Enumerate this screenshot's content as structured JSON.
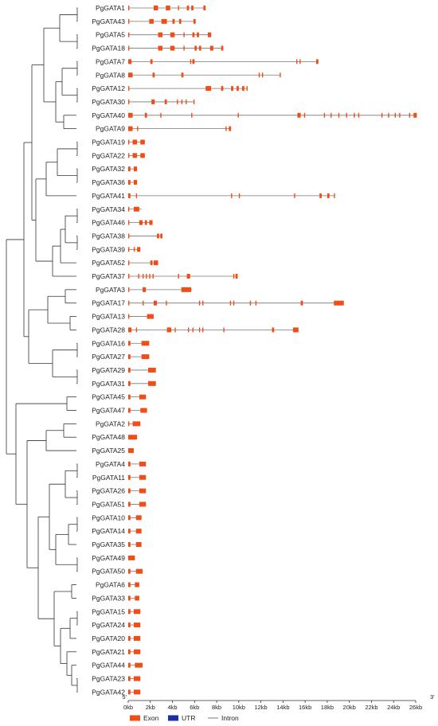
{
  "colors": {
    "exon": "#f04e16",
    "utr": "#1a2fa8",
    "intron": "#777777",
    "tree": "#333333"
  },
  "chart_data": {
    "type": "gene-structure",
    "axis": {
      "min_kb": 0,
      "max_kb": 26,
      "ticks_kb": [
        0,
        2,
        4,
        6,
        8,
        10,
        12,
        14,
        16,
        18,
        20,
        22,
        24,
        26
      ],
      "tick_labels": [
        "0kb",
        "2kb",
        "4kb",
        "6kb",
        "8kb",
        "10kb",
        "12kb",
        "14kb",
        "16kb",
        "18kb",
        "20kb",
        "22kb",
        "24kb",
        "26kb"
      ],
      "start_label": "5'",
      "end_label": "3'"
    },
    "legend": [
      {
        "label": "Exon",
        "type": "exon"
      },
      {
        "label": "UTR",
        "type": "utr"
      },
      {
        "label": "Intron",
        "type": "intron"
      }
    ],
    "genes": [
      {
        "name": "PgGATA1",
        "length": 7.0,
        "exons": [
          [
            0,
            0.1
          ],
          [
            2.3,
            2.7
          ],
          [
            3.4,
            3.8
          ],
          [
            4.5,
            4.6
          ],
          [
            5.3,
            5.5
          ],
          [
            5.7,
            5.9
          ],
          [
            6.8,
            7.0
          ]
        ]
      },
      {
        "name": "PgGATA43",
        "length": 6.1,
        "exons": [
          [
            0,
            0.1
          ],
          [
            1.9,
            2.3
          ],
          [
            3.0,
            3.5
          ],
          [
            4.0,
            4.2
          ],
          [
            4.6,
            4.8
          ],
          [
            5.9,
            6.1
          ]
        ]
      },
      {
        "name": "PgGATA5",
        "length": 7.5,
        "exons": [
          [
            0,
            0.1
          ],
          [
            2.7,
            3.1
          ],
          [
            3.8,
            4.2
          ],
          [
            5.0,
            5.1
          ],
          [
            5.8,
            6.0
          ],
          [
            6.2,
            6.4
          ],
          [
            7.2,
            7.5
          ]
        ]
      },
      {
        "name": "PgGATA18",
        "length": 8.6,
        "exons": [
          [
            0,
            0.1
          ],
          [
            2.7,
            3.1
          ],
          [
            3.8,
            4.2
          ],
          [
            5.0,
            5.1
          ],
          [
            6.0,
            6.2
          ],
          [
            6.4,
            6.6
          ],
          [
            7.4,
            7.7
          ],
          [
            8.4,
            8.6
          ]
        ]
      },
      {
        "name": "PgGATA7",
        "length": 17.2,
        "exons": [
          [
            0,
            0.3
          ],
          [
            2.0,
            2.2
          ],
          [
            5.6,
            5.7
          ],
          [
            5.8,
            6.0
          ],
          [
            15.2,
            15.3
          ],
          [
            15.5,
            15.6
          ],
          [
            17.0,
            17.2
          ]
        ]
      },
      {
        "name": "PgGATA8",
        "length": 13.8,
        "exons": [
          [
            0,
            0.4
          ],
          [
            2.2,
            2.4
          ],
          [
            4.8,
            5.0
          ],
          [
            11.8,
            11.9
          ],
          [
            12.1,
            12.2
          ],
          [
            13.7,
            13.8
          ]
        ]
      },
      {
        "name": "PgGATA12",
        "length": 10.8,
        "exons": [
          [
            0,
            0.1
          ],
          [
            7.0,
            7.5
          ],
          [
            8.4,
            8.6
          ],
          [
            9.3,
            9.5
          ],
          [
            9.8,
            10.0
          ],
          [
            10.3,
            10.5
          ],
          [
            10.7,
            10.8
          ]
        ]
      },
      {
        "name": "PgGATA30",
        "length": 6.0,
        "exons": [
          [
            0,
            0.1
          ],
          [
            2.1,
            2.4
          ],
          [
            3.3,
            3.5
          ],
          [
            4.4,
            4.5
          ],
          [
            4.8,
            4.9
          ],
          [
            5.2,
            5.3
          ],
          [
            5.9,
            6.0
          ]
        ]
      },
      {
        "name": "PgGATA40",
        "length": 26.1,
        "exons": [
          [
            0,
            0.4
          ],
          [
            1.5,
            1.7
          ],
          [
            2.9,
            3.0
          ],
          [
            5.7,
            5.8
          ],
          [
            9.9,
            10.0
          ],
          [
            15.3,
            15.6
          ],
          [
            15.9,
            16.0
          ],
          [
            17.7,
            17.8
          ],
          [
            18.3,
            18.4
          ],
          [
            19.0,
            19.1
          ],
          [
            19.7,
            19.8
          ],
          [
            20.4,
            20.5
          ],
          [
            20.8,
            20.9
          ],
          [
            22.9,
            23.0
          ],
          [
            23.5,
            23.6
          ],
          [
            24.1,
            24.2
          ],
          [
            24.5,
            24.6
          ],
          [
            25.4,
            25.5
          ],
          [
            25.8,
            26.1
          ]
        ]
      },
      {
        "name": "PgGATA9",
        "length": 9.3,
        "exons": [
          [
            0,
            0.4
          ],
          [
            0.8,
            0.9
          ],
          [
            8.8,
            8.9
          ],
          [
            9.1,
            9.3
          ]
        ]
      },
      {
        "name": "PgGATA19",
        "length": 1.5,
        "exons": [
          [
            0,
            0.1
          ],
          [
            0.4,
            0.8
          ],
          [
            1.1,
            1.5
          ]
        ]
      },
      {
        "name": "PgGATA22",
        "length": 1.5,
        "exons": [
          [
            0,
            0.1
          ],
          [
            0.4,
            0.8
          ],
          [
            1.1,
            1.5
          ]
        ]
      },
      {
        "name": "PgGATA32",
        "length": 0.8,
        "exons": [
          [
            0,
            0.2
          ],
          [
            0.5,
            0.8
          ]
        ]
      },
      {
        "name": "PgGATA36",
        "length": 0.8,
        "exons": [
          [
            0,
            0.2
          ],
          [
            0.5,
            0.8
          ]
        ]
      },
      {
        "name": "PgGATA41",
        "length": 18.7,
        "exons": [
          [
            0,
            0.2
          ],
          [
            0.7,
            0.8
          ],
          [
            9.3,
            9.4
          ],
          [
            10.0,
            10.1
          ],
          [
            15.0,
            15.1
          ],
          [
            17.3,
            17.5
          ],
          [
            18.0,
            18.2
          ],
          [
            18.6,
            18.7
          ]
        ]
      },
      {
        "name": "PgGATA34",
        "length": 1.2,
        "exons": [
          [
            0,
            0.1
          ],
          [
            0.5,
            1.0
          ]
        ]
      },
      {
        "name": "PgGATA46",
        "length": 2.2,
        "exons": [
          [
            0,
            0.1
          ],
          [
            1.0,
            1.3
          ],
          [
            1.5,
            1.7
          ],
          [
            1.9,
            2.2
          ]
        ]
      },
      {
        "name": "PgGATA38",
        "length": 3.1,
        "exons": [
          [
            0,
            0.1
          ],
          [
            2.6,
            2.8
          ],
          [
            2.9,
            3.1
          ]
        ]
      },
      {
        "name": "PgGATA39",
        "length": 1.1,
        "exons": [
          [
            0,
            0.1
          ],
          [
            0.5,
            0.6
          ],
          [
            0.8,
            1.1
          ]
        ]
      },
      {
        "name": "PgGATA52",
        "length": 2.7,
        "exons": [
          [
            0,
            0.1
          ],
          [
            2.0,
            2.2
          ],
          [
            2.3,
            2.7
          ]
        ]
      },
      {
        "name": "PgGATA37",
        "length": 9.9,
        "exons": [
          [
            0,
            0.1
          ],
          [
            0.9,
            1.0
          ],
          [
            1.3,
            1.4
          ],
          [
            1.6,
            1.7
          ],
          [
            1.9,
            2.0
          ],
          [
            2.2,
            2.3
          ],
          [
            4.5,
            4.6
          ],
          [
            5.3,
            5.6
          ],
          [
            9.5,
            9.6
          ],
          [
            9.7,
            9.9
          ]
        ]
      },
      {
        "name": "PgGATA3",
        "length": 5.8,
        "exons": [
          [
            0,
            0.1
          ],
          [
            1.3,
            1.6
          ],
          [
            4.8,
            5.7
          ]
        ]
      },
      {
        "name": "PgGATA17",
        "length": 19.5,
        "exons": [
          [
            0,
            0.1
          ],
          [
            1.3,
            1.4
          ],
          [
            2.3,
            2.6
          ],
          [
            3.4,
            3.5
          ],
          [
            6.4,
            6.5
          ],
          [
            6.7,
            6.8
          ],
          [
            9.2,
            9.3
          ],
          [
            9.5,
            9.6
          ],
          [
            11.0,
            11.1
          ],
          [
            11.5,
            11.6
          ],
          [
            15.6,
            15.8
          ],
          [
            18.6,
            19.5
          ]
        ]
      },
      {
        "name": "PgGATA13",
        "length": 2.3,
        "exons": [
          [
            0,
            0.1
          ],
          [
            1.7,
            2.3
          ]
        ]
      },
      {
        "name": "PgGATA28",
        "length": 15.4,
        "exons": [
          [
            0,
            0.3
          ],
          [
            0.7,
            0.8
          ],
          [
            3.5,
            3.9
          ],
          [
            4.2,
            4.3
          ],
          [
            5.4,
            5.5
          ],
          [
            5.8,
            5.9
          ],
          [
            6.4,
            6.5
          ],
          [
            6.7,
            6.8
          ],
          [
            8.6,
            8.7
          ],
          [
            13.0,
            13.2
          ],
          [
            14.9,
            15.4
          ]
        ]
      },
      {
        "name": "PgGATA16",
        "length": 1.9,
        "exons": [
          [
            0,
            0.2
          ],
          [
            1.2,
            1.9
          ]
        ]
      },
      {
        "name": "PgGATA27",
        "length": 1.9,
        "exons": [
          [
            0,
            0.2
          ],
          [
            1.2,
            1.9
          ]
        ]
      },
      {
        "name": "PgGATA29",
        "length": 2.5,
        "exons": [
          [
            0,
            0.2
          ],
          [
            1.8,
            2.5
          ]
        ]
      },
      {
        "name": "PgGATA31",
        "length": 2.5,
        "exons": [
          [
            0,
            0.2
          ],
          [
            1.8,
            2.5
          ]
        ]
      },
      {
        "name": "PgGATA45",
        "length": 1.6,
        "exons": [
          [
            0,
            0.2
          ],
          [
            1.0,
            1.6
          ]
        ]
      },
      {
        "name": "PgGATA47",
        "length": 1.7,
        "exons": [
          [
            0,
            0.2
          ],
          [
            1.1,
            1.7
          ]
        ]
      },
      {
        "name": "PgGATA2",
        "length": 1.1,
        "exons": [
          [
            0,
            0.1
          ],
          [
            0.4,
            1.1
          ]
        ]
      },
      {
        "name": "PgGATA48",
        "length": 0.8,
        "exons": [
          [
            0,
            0.8
          ]
        ]
      },
      {
        "name": "PgGATA25",
        "length": 0.5,
        "exons": [
          [
            0,
            0.5
          ]
        ]
      },
      {
        "name": "PgGATA4",
        "length": 1.6,
        "exons": [
          [
            0,
            0.2
          ],
          [
            1.0,
            1.6
          ]
        ]
      },
      {
        "name": "PgGATA11",
        "length": 1.6,
        "exons": [
          [
            0,
            0.2
          ],
          [
            1.0,
            1.6
          ]
        ]
      },
      {
        "name": "PgGATA26",
        "length": 1.6,
        "exons": [
          [
            0,
            0.2
          ],
          [
            1.0,
            1.6
          ]
        ]
      },
      {
        "name": "PgGATA51",
        "length": 1.6,
        "exons": [
          [
            0,
            0.2
          ],
          [
            1.0,
            1.6
          ]
        ]
      },
      {
        "name": "PgGATA10",
        "length": 1.2,
        "exons": [
          [
            0,
            0.2
          ],
          [
            0.7,
            1.2
          ]
        ]
      },
      {
        "name": "PgGATA14",
        "length": 1.2,
        "exons": [
          [
            0,
            0.2
          ],
          [
            0.7,
            1.2
          ]
        ]
      },
      {
        "name": "PgGATA35",
        "length": 1.2,
        "exons": [
          [
            0,
            0.2
          ],
          [
            0.7,
            1.2
          ]
        ]
      },
      {
        "name": "PgGATA49",
        "length": 0.6,
        "exons": [
          [
            0,
            0.6
          ]
        ]
      },
      {
        "name": "PgGATA50",
        "length": 1.3,
        "exons": [
          [
            0,
            0.2
          ],
          [
            0.7,
            1.3
          ]
        ]
      },
      {
        "name": "PgGATA6",
        "length": 1.0,
        "exons": [
          [
            0,
            0.2
          ],
          [
            0.6,
            1.0
          ]
        ]
      },
      {
        "name": "PgGATA33",
        "length": 1.0,
        "exons": [
          [
            0,
            0.2
          ],
          [
            0.6,
            1.0
          ]
        ]
      },
      {
        "name": "PgGATA15",
        "length": 1.1,
        "exons": [
          [
            0,
            0.2
          ],
          [
            0.5,
            1.1
          ]
        ]
      },
      {
        "name": "PgGATA24",
        "length": 1.1,
        "exons": [
          [
            0,
            0.2
          ],
          [
            0.5,
            1.1
          ]
        ]
      },
      {
        "name": "PgGATA20",
        "length": 1.1,
        "exons": [
          [
            0,
            0.2
          ],
          [
            0.5,
            1.1
          ]
        ]
      },
      {
        "name": "PgGATA21",
        "length": 1.1,
        "exons": [
          [
            0,
            0.2
          ],
          [
            0.5,
            1.1
          ]
        ]
      },
      {
        "name": "PgGATA44",
        "length": 1.3,
        "exons": [
          [
            0,
            0.2
          ],
          [
            0.6,
            1.3
          ]
        ]
      },
      {
        "name": "PgGATA23",
        "length": 1.1,
        "exons": [
          [
            0,
            0.2
          ],
          [
            0.5,
            1.1
          ]
        ]
      },
      {
        "name": "PgGATA42",
        "length": 1.1,
        "exons": [
          [
            0,
            0.2
          ],
          [
            0.5,
            1.1
          ]
        ]
      }
    ]
  }
}
